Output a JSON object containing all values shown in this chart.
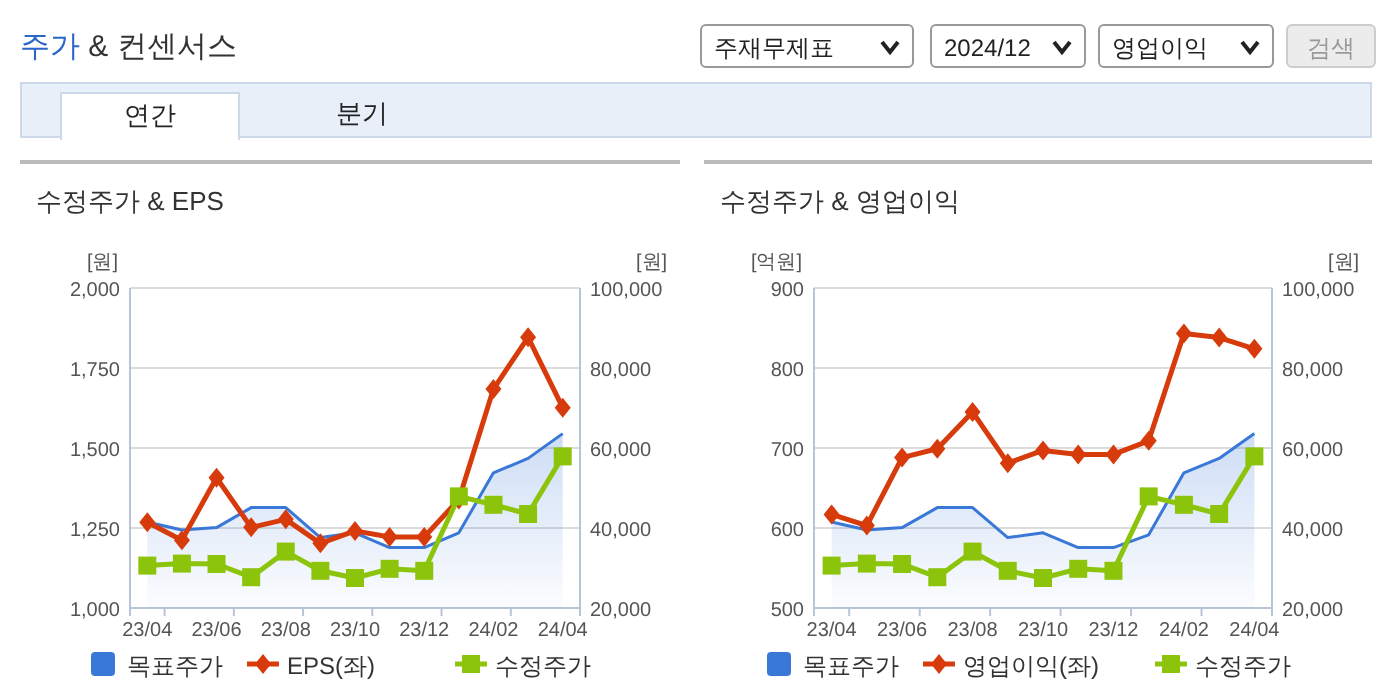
{
  "chart_data": [
    {
      "type": "other",
      "title": "주가 & 컨센서스",
      "annotations": [
        "주재무제표",
        "2024/12",
        "영업이익",
        "검색",
        "연간",
        "분기"
      ]
    },
    {
      "type": "line",
      "title": "수정주가 & EPS",
      "categories": [
        "23/04",
        null,
        "23/06",
        null,
        "23/08",
        null,
        "23/10",
        null,
        "23/12",
        null,
        "24/02",
        null,
        "24/04"
      ],
      "ylabel": "[원]",
      "y2label": "[원]",
      "ylim": [
        1000,
        2000
      ],
      "yticks": [
        {
          "value": 1000,
          "label": "1,000"
        },
        {
          "value": 1250,
          "label": "1,250"
        },
        {
          "value": 1500,
          "label": "1,500"
        },
        {
          "value": 1750,
          "label": "1,750"
        },
        {
          "value": 2000,
          "label": "2,000"
        }
      ],
      "y2lim": [
        20000,
        100000
      ],
      "y2ticks": [
        {
          "value": 20000,
          "label": "20,000"
        },
        {
          "value": 40000,
          "label": "40,000"
        },
        {
          "value": 60000,
          "label": "60,000"
        },
        {
          "value": 80000,
          "label": "80,000"
        },
        {
          "value": 100000,
          "label": "100,000"
        }
      ],
      "grid": "y",
      "legend": "bottom",
      "series": [
        {
          "name": "목표주가",
          "type": "area",
          "axis": "y2",
          "color": "#3a78d8",
          "values": [
            41500,
            39500,
            40100,
            45100,
            45100,
            37600,
            38800,
            35100,
            35100,
            38800,
            53800,
            57400,
            63600
          ]
        },
        {
          "name": "EPS(좌)",
          "type": "line",
          "axis": "y",
          "color": "#d83b0b",
          "marker": "diamond",
          "values": [
            1268,
            1212,
            1407,
            1252,
            1277,
            1202,
            1241,
            1222,
            1222,
            1339,
            1684,
            1846,
            1626
          ]
        },
        {
          "name": "수정주가",
          "type": "line",
          "axis": "y2",
          "color": "#8cc40c",
          "marker": "square",
          "values": [
            30600,
            31100,
            31000,
            27700,
            34100,
            29300,
            27500,
            29800,
            29300,
            47900,
            45800,
            43500,
            57900
          ]
        }
      ]
    },
    {
      "type": "line",
      "title": "수정주가 & 영업이익",
      "categories": [
        "23/04",
        null,
        "23/06",
        null,
        "23/08",
        null,
        "23/10",
        null,
        "23/12",
        null,
        "24/02",
        null,
        "24/04"
      ],
      "ylabel": "[억원]",
      "y2label": "[원]",
      "ylim": [
        500,
        900
      ],
      "yticks": [
        500,
        600,
        700,
        800,
        900
      ],
      "y2lim": [
        20000,
        100000
      ],
      "y2ticks": [
        {
          "value": 20000,
          "label": "20,000"
        },
        {
          "value": 40000,
          "label": "40,000"
        },
        {
          "value": 60000,
          "label": "60,000"
        },
        {
          "value": 80000,
          "label": "80,000"
        },
        {
          "value": 100000,
          "label": "100,000"
        }
      ],
      "grid": "y",
      "legend": "bottom",
      "series": [
        {
          "name": "목표주가",
          "type": "area",
          "axis": "y2",
          "color": "#3a78d8",
          "values": [
            41500,
            39500,
            40100,
            45100,
            45100,
            37600,
            38800,
            35100,
            35100,
            38300,
            53800,
            57400,
            63600
          ]
        },
        {
          "name": "영업이익(좌)",
          "type": "line",
          "axis": "y",
          "color": "#d83b0b",
          "marker": "diamond",
          "values": [
            617,
            603,
            688,
            699,
            745,
            681,
            697,
            692,
            692,
            709,
            843,
            838,
            824
          ]
        },
        {
          "name": "수정주가",
          "type": "line",
          "axis": "y2",
          "color": "#8cc40c",
          "marker": "square",
          "values": [
            30600,
            31100,
            31000,
            27700,
            34100,
            29300,
            27500,
            29800,
            29300,
            47900,
            45800,
            43500,
            57900
          ]
        }
      ]
    }
  ]
}
